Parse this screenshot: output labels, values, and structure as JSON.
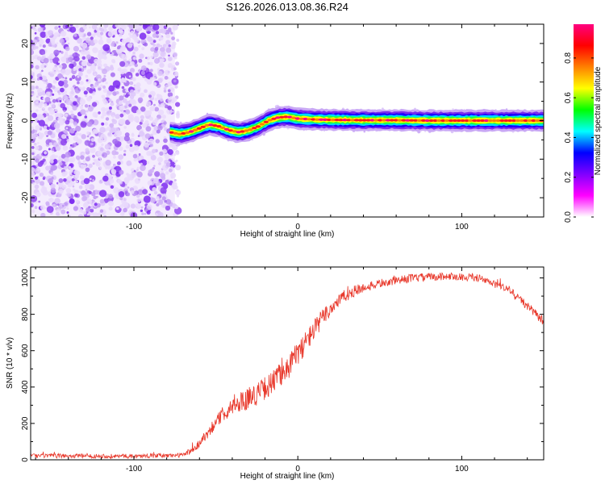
{
  "title": "S126.2026.013.08.36.R24",
  "chart_data": [
    {
      "type": "heatmap",
      "name": "spectrogram",
      "xlabel": "Height of straight line (km)",
      "ylabel": "Frequency (Hz)",
      "xlim": [
        -163,
        150
      ],
      "ylim": [
        -25,
        25
      ],
      "xticks": [
        -100,
        0,
        100
      ],
      "yticks": [
        -20,
        -10,
        0,
        10,
        20
      ],
      "noise_region_x": [
        -163,
        -75
      ],
      "signal_track": {
        "x": [
          -78,
          -72,
          -66,
          -60,
          -54,
          -48,
          -42,
          -36,
          -30,
          -24,
          -18,
          -12,
          -6,
          0,
          10,
          20,
          40,
          60,
          80,
          100,
          120,
          150
        ],
        "freq": [
          -3,
          -3.5,
          -3,
          -2,
          -1,
          -1.5,
          -2.5,
          -3,
          -2.5,
          -1.5,
          0,
          0.8,
          1,
          0.5,
          0.3,
          0.2,
          0.1,
          0.1,
          0,
          0,
          0,
          0
        ]
      },
      "colorbar": {
        "label": "Normalized spectral amplitude",
        "ticks": [
          "0.0",
          "0.2",
          "0.4",
          "0.6",
          "0.8"
        ],
        "range": [
          0,
          0.97
        ],
        "colors": [
          "#ffffff",
          "#ff00ff",
          "#8000ff",
          "#0000ff",
          "#00ffff",
          "#00ff00",
          "#ffff00",
          "#ff8000",
          "#ff0000",
          "#ff0080"
        ]
      }
    },
    {
      "type": "line",
      "name": "snr",
      "xlabel": "Height of straight line (km)",
      "ylabel": "SNR (10 * v/v)",
      "xlim": [
        -163,
        150
      ],
      "ylim": [
        0,
        1060
      ],
      "xticks": [
        -100,
        0,
        100
      ],
      "yticks": [
        0,
        200,
        400,
        600,
        800,
        1000
      ],
      "color": "#e8392c",
      "anchors": {
        "x": [
          -163,
          -100,
          -70,
          -62,
          -55,
          -45,
          -35,
          -25,
          -15,
          -5,
          5,
          15,
          25,
          35,
          50,
          70,
          90,
          110,
          130,
          150
        ],
        "y": [
          22,
          20,
          25,
          70,
          150,
          260,
          320,
          360,
          430,
          520,
          650,
          780,
          880,
          930,
          970,
          1000,
          1010,
          1000,
          930,
          760
        ]
      },
      "noise_anchors": {
        "x": [
          -163,
          -70,
          -60,
          -30,
          0,
          20,
          40,
          100,
          150
        ],
        "y": [
          12,
          12,
          25,
          60,
          70,
          45,
          25,
          20,
          25
        ]
      }
    }
  ]
}
